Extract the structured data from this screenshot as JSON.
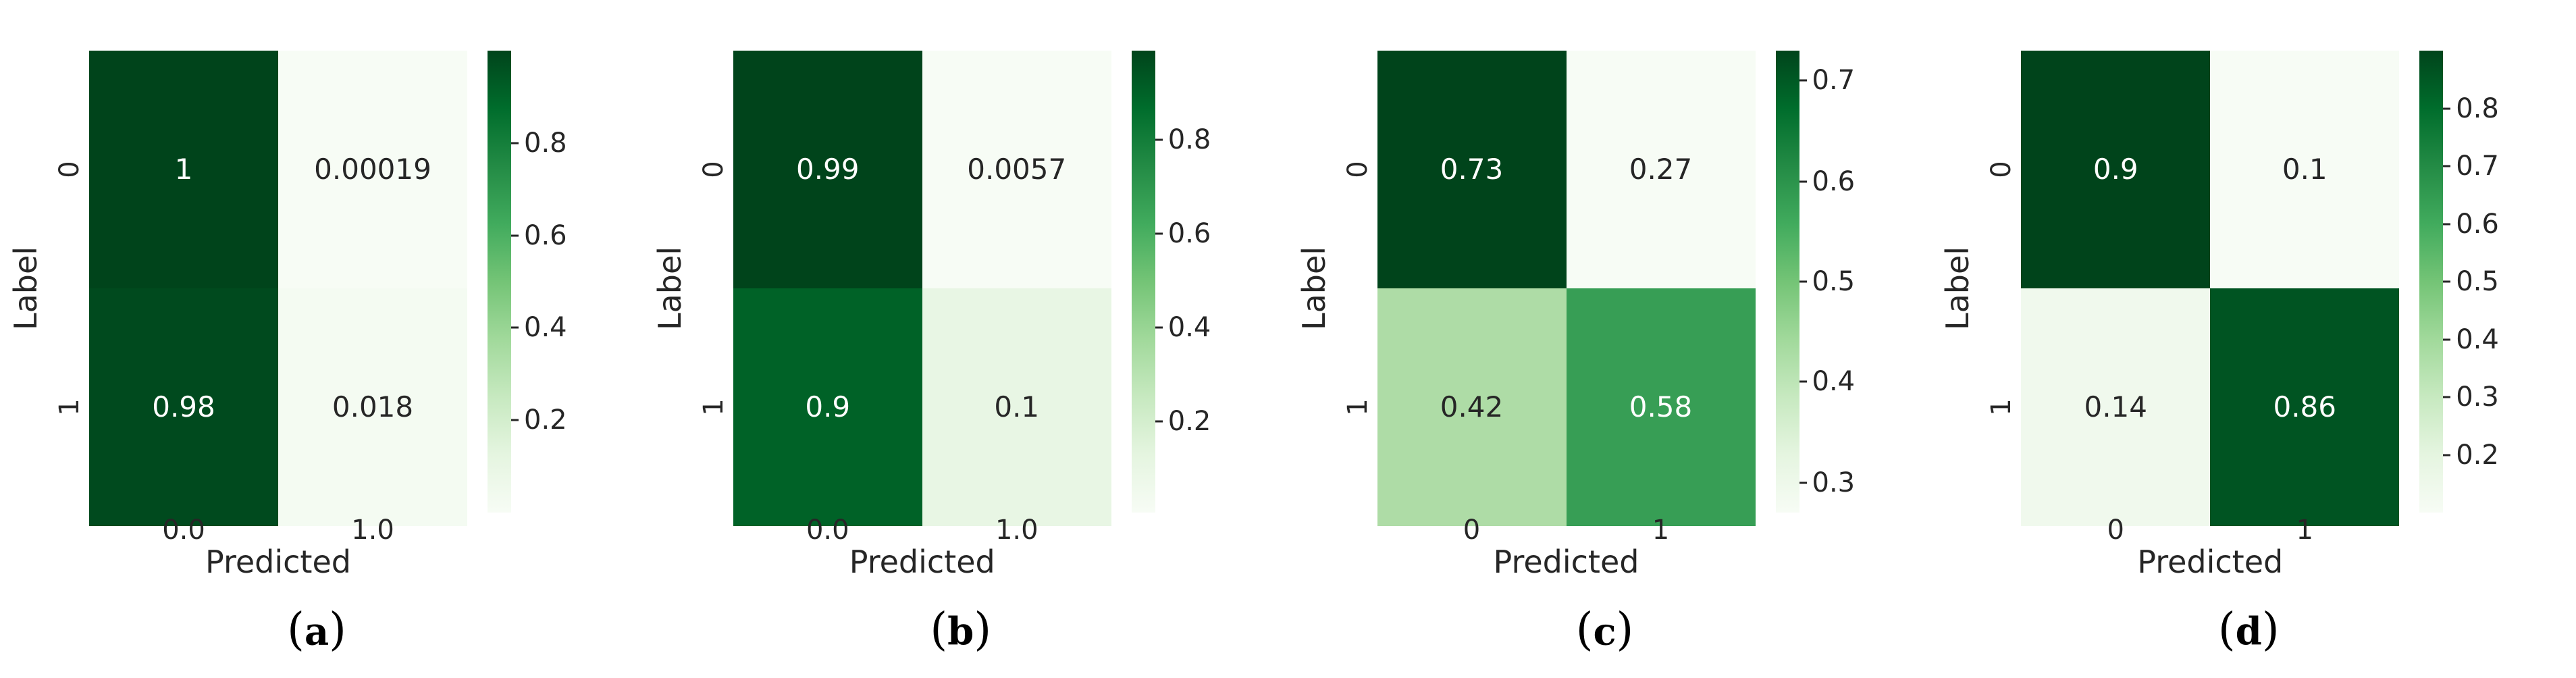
{
  "figure": {
    "background": "#ffffff",
    "text_color": "#262626",
    "annot_light": "#ffffff",
    "annot_dark": "#262626",
    "colormap_name": "Greens",
    "colormap_stops": [
      "#f7fcf5",
      "#e5f5e0",
      "#c7e9c0",
      "#a1d99b",
      "#74c476",
      "#41ab5d",
      "#238b45",
      "#006d2c",
      "#00441b"
    ]
  },
  "panels": [
    {
      "caption_open": "(",
      "caption_letter": "a",
      "caption_close": ")",
      "ylabel": "Label",
      "xlabel": "Predicted",
      "yticks": [
        "0",
        "1"
      ],
      "xticks": [
        "0.0",
        "1.0"
      ],
      "cells": [
        {
          "text": "1",
          "bg": "#00441b",
          "fg": "#ffffff"
        },
        {
          "text": "0.00019",
          "bg": "#f7fcf5",
          "fg": "#262626"
        },
        {
          "text": "0.98",
          "bg": "#004a1e",
          "fg": "#ffffff"
        },
        {
          "text": "0.018",
          "bg": "#f4fbf2",
          "fg": "#262626"
        }
      ],
      "colorbar_ticks": [
        {
          "label": "0.8",
          "top_pct": 20.0
        },
        {
          "label": "0.6",
          "top_pct": 40.0
        },
        {
          "label": "0.4",
          "top_pct": 60.0
        },
        {
          "label": "0.2",
          "top_pct": 80.0
        }
      ]
    },
    {
      "caption_open": "(",
      "caption_letter": "b",
      "caption_close": ")",
      "ylabel": "Label",
      "xlabel": "Predicted",
      "yticks": [
        "0",
        "1"
      ],
      "xticks": [
        "0.0",
        "1.0"
      ],
      "cells": [
        {
          "text": "0.99",
          "bg": "#00441b",
          "fg": "#ffffff"
        },
        {
          "text": "0.0057",
          "bg": "#f7fcf5",
          "fg": "#262626"
        },
        {
          "text": "0.9",
          "bg": "#006227",
          "fg": "#ffffff"
        },
        {
          "text": "0.1",
          "bg": "#e8f6e4",
          "fg": "#262626"
        }
      ],
      "colorbar_ticks": [
        {
          "label": "0.8",
          "top_pct": 19.3
        },
        {
          "label": "0.6",
          "top_pct": 39.6
        },
        {
          "label": "0.4",
          "top_pct": 59.9
        },
        {
          "label": "0.2",
          "top_pct": 80.3
        }
      ]
    },
    {
      "caption_open": "(",
      "caption_letter": "c",
      "caption_close": ")",
      "ylabel": "Label",
      "xlabel": "Predicted",
      "yticks": [
        "0",
        "1"
      ],
      "xticks": [
        "0",
        "1"
      ],
      "cells": [
        {
          "text": "0.73",
          "bg": "#00441b",
          "fg": "#ffffff"
        },
        {
          "text": "0.27",
          "bg": "#f7fcf5",
          "fg": "#262626"
        },
        {
          "text": "0.42",
          "bg": "#aedca6",
          "fg": "#262626"
        },
        {
          "text": "0.58",
          "bg": "#379e55",
          "fg": "#ffffff"
        }
      ],
      "colorbar_ticks": [
        {
          "label": "0.7",
          "top_pct": 6.5
        },
        {
          "label": "0.6",
          "top_pct": 28.3
        },
        {
          "label": "0.5",
          "top_pct": 50.0
        },
        {
          "label": "0.4",
          "top_pct": 71.7
        },
        {
          "label": "0.3",
          "top_pct": 93.5
        }
      ]
    },
    {
      "caption_open": "(",
      "caption_letter": "d",
      "caption_close": ")",
      "ylabel": "Label",
      "xlabel": "Predicted",
      "yticks": [
        "0",
        "1"
      ],
      "xticks": [
        "0",
        "1"
      ],
      "cells": [
        {
          "text": "0.9",
          "bg": "#00441b",
          "fg": "#ffffff"
        },
        {
          "text": "0.1",
          "bg": "#f7fcf5",
          "fg": "#262626"
        },
        {
          "text": "0.14",
          "bg": "#f0f9ed",
          "fg": "#262626"
        },
        {
          "text": "0.86",
          "bg": "#005422",
          "fg": "#ffffff"
        }
      ],
      "colorbar_ticks": [
        {
          "label": "0.8",
          "top_pct": 12.5
        },
        {
          "label": "0.7",
          "top_pct": 25.0
        },
        {
          "label": "0.6",
          "top_pct": 37.5
        },
        {
          "label": "0.5",
          "top_pct": 50.0
        },
        {
          "label": "0.4",
          "top_pct": 62.5
        },
        {
          "label": "0.3",
          "top_pct": 75.0
        },
        {
          "label": "0.2",
          "top_pct": 87.5
        }
      ]
    }
  ],
  "chart_data": [
    {
      "type": "heatmap",
      "caption": "(a)",
      "matrix": [
        [
          1,
          0.00019
        ],
        [
          0.98,
          0.018
        ]
      ],
      "annotations": [
        [
          "1",
          "0.00019"
        ],
        [
          "0.98",
          "0.018"
        ]
      ],
      "row_labels": [
        "0",
        "1"
      ],
      "col_labels": [
        "0.0",
        "1.0"
      ],
      "xlabel": "Predicted",
      "ylabel": "Label",
      "colormap": "Greens",
      "vmin": 0.00019,
      "vmax": 1.0,
      "colorbar_ticks": [
        0.8,
        0.6,
        0.4,
        0.2
      ],
      "colorbar_position": "right",
      "grid": false
    },
    {
      "type": "heatmap",
      "caption": "(b)",
      "matrix": [
        [
          0.99,
          0.0057
        ],
        [
          0.9,
          0.1
        ]
      ],
      "annotations": [
        [
          "0.99",
          "0.0057"
        ],
        [
          "0.9",
          "0.1"
        ]
      ],
      "row_labels": [
        "0",
        "1"
      ],
      "col_labels": [
        "0.0",
        "1.0"
      ],
      "xlabel": "Predicted",
      "ylabel": "Label",
      "colormap": "Greens",
      "vmin": 0.0057,
      "vmax": 0.99,
      "colorbar_ticks": [
        0.8,
        0.6,
        0.4,
        0.2
      ],
      "colorbar_position": "right",
      "grid": false
    },
    {
      "type": "heatmap",
      "caption": "(c)",
      "matrix": [
        [
          0.73,
          0.27
        ],
        [
          0.42,
          0.58
        ]
      ],
      "annotations": [
        [
          "0.73",
          "0.27"
        ],
        [
          "0.42",
          "0.58"
        ]
      ],
      "row_labels": [
        "0",
        "1"
      ],
      "col_labels": [
        "0",
        "1"
      ],
      "xlabel": "Predicted",
      "ylabel": "Label",
      "colormap": "Greens",
      "vmin": 0.27,
      "vmax": 0.73,
      "colorbar_ticks": [
        0.7,
        0.6,
        0.5,
        0.4,
        0.3
      ],
      "colorbar_position": "right",
      "grid": false
    },
    {
      "type": "heatmap",
      "caption": "(d)",
      "matrix": [
        [
          0.9,
          0.1
        ],
        [
          0.14,
          0.86
        ]
      ],
      "annotations": [
        [
          "0.9",
          "0.1"
        ],
        [
          "0.14",
          "0.86"
        ]
      ],
      "row_labels": [
        "0",
        "1"
      ],
      "col_labels": [
        "0",
        "1"
      ],
      "xlabel": "Predicted",
      "ylabel": "Label",
      "colormap": "Greens",
      "vmin": 0.1,
      "vmax": 0.9,
      "colorbar_ticks": [
        0.8,
        0.7,
        0.6,
        0.5,
        0.4,
        0.3,
        0.2
      ],
      "colorbar_position": "right",
      "grid": false
    }
  ]
}
